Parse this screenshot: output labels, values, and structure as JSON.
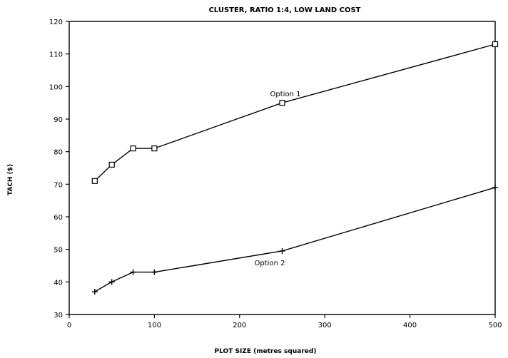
{
  "chart_data": {
    "type": "line",
    "title": "CLUSTER, RATIO 1:4, LOW LAND COST",
    "xlabel": "PLOT SIZE (metres squared)",
    "ylabel": "TACH ($)",
    "xlim": [
      0,
      500
    ],
    "ylim": [
      30,
      120
    ],
    "xticks": [
      0,
      100,
      200,
      300,
      400,
      500
    ],
    "yticks": [
      30,
      40,
      50,
      60,
      70,
      80,
      90,
      100,
      110,
      120
    ],
    "grid": false,
    "series": [
      {
        "name": "Option 1",
        "marker": "square",
        "x": [
          30,
          50,
          75,
          100,
          250,
          500
        ],
        "y": [
          71,
          76,
          81,
          81,
          95,
          113
        ]
      },
      {
        "name": "Option 2",
        "marker": "plus",
        "x": [
          30,
          50,
          75,
          100,
          250,
          500
        ],
        "y": [
          37,
          40,
          43,
          43,
          49.5,
          69
        ]
      }
    ]
  }
}
